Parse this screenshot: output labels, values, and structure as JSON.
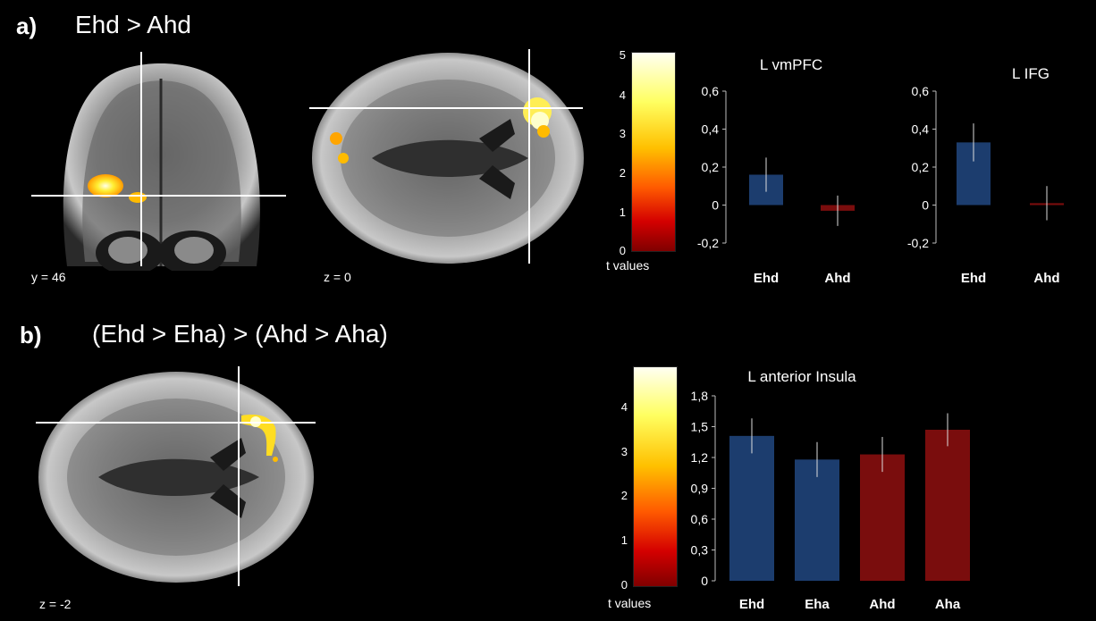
{
  "panel_a": {
    "label": "a)",
    "title": "Ehd > Ahd",
    "slices": [
      "y = 46",
      "z = 0"
    ],
    "colorbar": {
      "ticks": [
        "5",
        "4",
        "3",
        "2",
        "1",
        "0"
      ],
      "label": "t values"
    }
  },
  "panel_b": {
    "label": "b)",
    "title": "(Ehd > Eha) > (Ahd > Aha)",
    "slices": [
      "z = -2"
    ],
    "colorbar": {
      "ticks": [
        "4",
        "3",
        "2",
        "1",
        "0"
      ],
      "label": "t values"
    }
  },
  "colors": {
    "blue": "#1c3d6e",
    "red": "#7a0d0d",
    "errorbar": "#dddddd",
    "axis": "#bbbbbb"
  },
  "chart_data": [
    {
      "type": "bar",
      "title": "L vmPFC",
      "categories": [
        "Ehd",
        "Ahd"
      ],
      "values": [
        0.16,
        -0.03
      ],
      "errors": [
        0.09,
        0.08
      ],
      "colors": [
        "#1c3d6e",
        "#7a0d0d"
      ],
      "ylim": [
        -0.2,
        0.6
      ],
      "yticks": [
        0.6,
        0.4,
        0.2,
        0,
        -0.2
      ],
      "ytick_labels": [
        "0,6",
        "0,4",
        "0,2",
        "0",
        "-0,2"
      ]
    },
    {
      "type": "bar",
      "title": "L IFG",
      "categories": [
        "Ehd",
        "Ahd"
      ],
      "values": [
        0.33,
        0.01
      ],
      "errors": [
        0.1,
        0.09
      ],
      "colors": [
        "#1c3d6e",
        "#7a0d0d"
      ],
      "ylim": [
        -0.2,
        0.6
      ],
      "yticks": [
        0.6,
        0.4,
        0.2,
        0,
        -0.2
      ],
      "ytick_labels": [
        "0,6",
        "0,4",
        "0,2",
        "0",
        "-0,2"
      ]
    },
    {
      "type": "bar",
      "title": "L anterior Insula",
      "categories": [
        "Ehd",
        "Eha",
        "Ahd",
        "Aha"
      ],
      "values": [
        1.41,
        1.18,
        1.23,
        1.47
      ],
      "errors": [
        0.17,
        0.17,
        0.17,
        0.16
      ],
      "colors": [
        "#1c3d6e",
        "#1c3d6e",
        "#7a0d0d",
        "#7a0d0d"
      ],
      "ylim": [
        0,
        1.8
      ],
      "yticks": [
        1.8,
        1.5,
        1.2,
        0.9,
        0.6,
        0.3,
        0
      ],
      "ytick_labels": [
        "1,8",
        "1,5",
        "1,2",
        "0,9",
        "0,6",
        "0,3",
        "0"
      ]
    }
  ]
}
